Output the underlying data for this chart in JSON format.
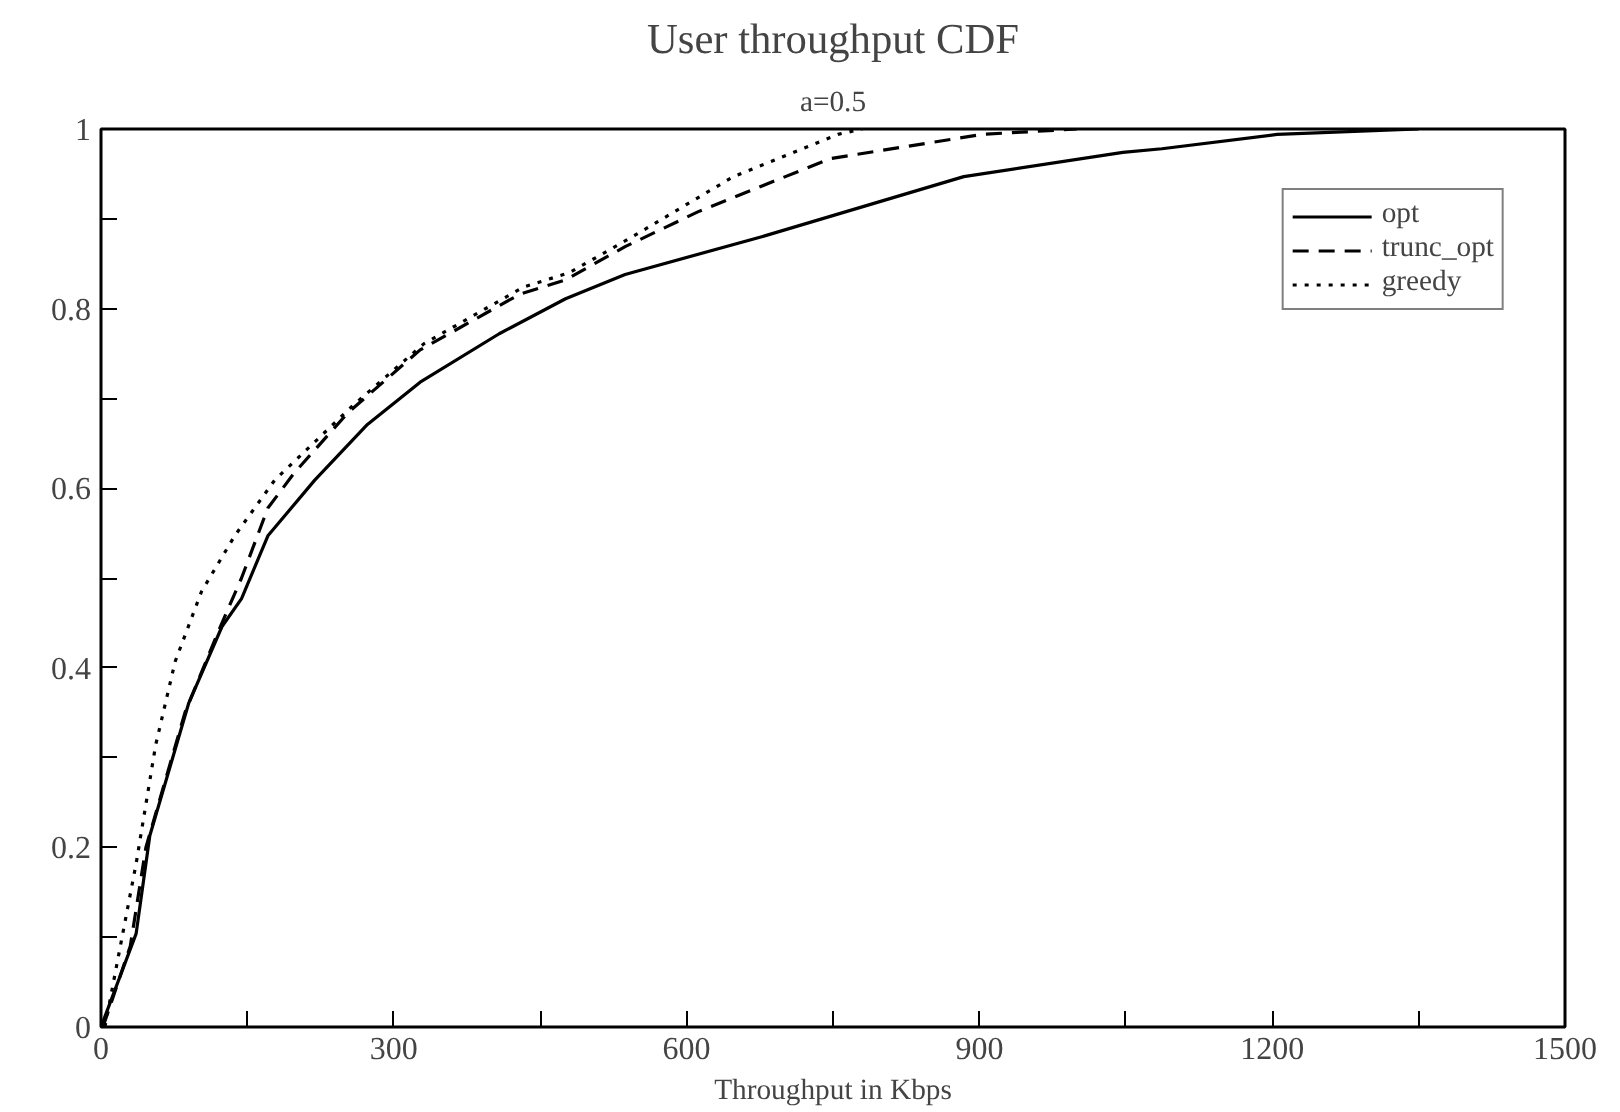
{
  "chart_data": {
    "type": "line",
    "title": "User throughput CDF",
    "subtitle": "a=0.5",
    "xlabel": "Throughput in Kbps",
    "xlim": [
      0,
      1500
    ],
    "ylim": [
      0,
      1
    ],
    "xticks": [
      0,
      {
        "value": 150,
        "label": null
      },
      300,
      {
        "value": 450,
        "label": null
      },
      600,
      {
        "value": 750,
        "label": null
      },
      900,
      {
        "value": 1050,
        "label": null
      },
      1200,
      {
        "value": 1350,
        "label": null
      },
      1500
    ],
    "yticks": [
      0,
      {
        "value": 0.1,
        "label": null
      },
      0.2,
      {
        "value": 0.3,
        "label": null
      },
      0.4,
      {
        "value": 0.5,
        "label": null
      },
      0.6,
      {
        "value": 0.7,
        "label": null
      },
      0.8,
      {
        "value": 0.9,
        "label": null
      },
      1
    ],
    "grid": false,
    "legend": "top right",
    "marker": "none",
    "series": [
      {
        "name": "opt",
        "color": "#000000",
        "line_style": "solid",
        "x": [
          0,
          36,
          50,
          90,
          124,
          144,
          171,
          219,
          273,
          327,
          408,
          476,
          537,
          680,
          884,
          1047,
          1087,
          1205,
          1350
        ],
        "values": [
          0,
          0.104,
          0.213,
          0.361,
          0.446,
          0.477,
          0.547,
          0.609,
          0.671,
          0.718,
          0.772,
          0.811,
          0.838,
          0.881,
          0.947,
          0.974,
          0.978,
          0.994,
          1
        ]
      },
      {
        "name": "trunc_opt",
        "color": "#000000",
        "line_style": "dashed",
        "x": [
          2,
          30,
          46,
          86,
          120,
          144,
          171,
          198,
          253,
          327,
          429,
          476,
          537,
          612,
          747,
          903,
          1000
        ],
        "values": [
          0,
          0.09,
          0.2,
          0.35,
          0.44,
          0.5,
          0.578,
          0.617,
          0.684,
          0.754,
          0.816,
          0.832,
          0.869,
          0.908,
          0.967,
          0.994,
          1
        ]
      },
      {
        "name": "greedy",
        "color": "#000000",
        "line_style": "dotted",
        "x": [
          4,
          36,
          56,
          76,
          103,
          137,
          178,
          258,
          331,
          433,
          480,
          546,
          648,
          755,
          780
        ],
        "values": [
          0,
          0.182,
          0.314,
          0.407,
          0.485,
          0.547,
          0.609,
          0.692,
          0.761,
          0.824,
          0.84,
          0.881,
          0.947,
          0.994,
          1
        ]
      }
    ]
  }
}
